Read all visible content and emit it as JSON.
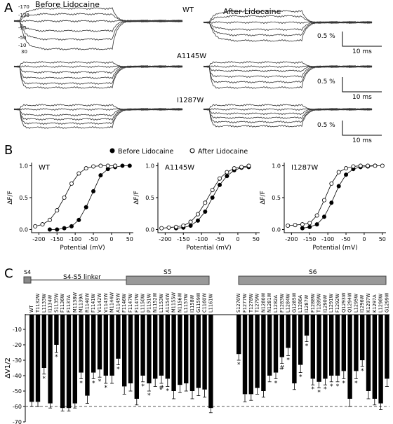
{
  "panel_labels": {
    "a": "A",
    "b": "B",
    "c": "C"
  },
  "panel_a": {
    "col_before": "Before Lidocaine",
    "col_after": "After Lidocaine",
    "rows": [
      {
        "label": "WT",
        "scale_pct": "0.5 %",
        "scale_ms": "10 ms"
      },
      {
        "label": "A1145W",
        "scale_pct": "0.5 %",
        "scale_ms": "10 ms"
      },
      {
        "label": "I1287W",
        "scale_pct": "0.5 %",
        "scale_ms": "10 ms"
      }
    ],
    "voltage_labels": [
      "-170",
      "-130",
      "-90",
      "-50",
      "-10",
      "30"
    ]
  },
  "panel_b": {
    "legend_before": "Before Lidocaine",
    "legend_after": "After Lidocaine",
    "ylabel": "ΔF/F",
    "xlabel": "Potential (mV)",
    "chart_data": [
      {
        "type": "scatter",
        "title": "WT",
        "xlim": [
          -220,
          60
        ],
        "ylim": [
          -0.05,
          1.05
        ],
        "xticks": [
          -200,
          -150,
          -100,
          -50,
          0,
          50
        ],
        "yticks": [
          0.0,
          0.5,
          1.0
        ],
        "series": [
          {
            "name": "Before Lidocaine",
            "x": [
              -170,
              -150,
              -130,
              -110,
              -90,
              -70,
              -50,
              -30,
              -10,
              10,
              30,
              50
            ],
            "y": [
              0.0,
              0.0,
              0.02,
              0.05,
              0.15,
              0.35,
              0.6,
              0.85,
              0.95,
              0.98,
              1.0,
              1.0
            ],
            "fill": "#000"
          },
          {
            "name": "After Lidocaine",
            "x": [
              -210,
              -190,
              -170,
              -150,
              -130,
              -110,
              -90,
              -70,
              -50,
              -30,
              -10,
              10
            ],
            "y": [
              0.05,
              0.08,
              0.15,
              0.3,
              0.5,
              0.72,
              0.88,
              0.96,
              0.99,
              1.0,
              1.0,
              1.0
            ],
            "fill": "#fff"
          }
        ]
      },
      {
        "type": "scatter",
        "title": "A1145W",
        "xlim": [
          -220,
          60
        ],
        "ylim": [
          -0.05,
          1.05
        ],
        "xticks": [
          -200,
          -150,
          -100,
          -50,
          0,
          50
        ],
        "yticks": [
          0.0,
          0.5,
          1.0
        ],
        "series": [
          {
            "name": "Before Lidocaine",
            "x": [
              -170,
              -150,
              -130,
              -110,
              -90,
              -70,
              -50,
              -30,
              -10,
              10,
              30
            ],
            "y": [
              0.02,
              0.03,
              0.06,
              0.14,
              0.28,
              0.5,
              0.7,
              0.84,
              0.93,
              0.97,
              0.98
            ],
            "fill": "#000"
          },
          {
            "name": "After Lidocaine",
            "x": [
              -210,
              -190,
              -170,
              -150,
              -130,
              -110,
              -90,
              -70,
              -50,
              -30,
              -10,
              10,
              30
            ],
            "y": [
              0.02,
              0.03,
              0.04,
              0.06,
              0.12,
              0.24,
              0.42,
              0.62,
              0.8,
              0.9,
              0.96,
              0.98,
              1.0
            ],
            "fill": "#fff"
          }
        ]
      },
      {
        "type": "scatter",
        "title": "I1287W",
        "xlim": [
          -220,
          60
        ],
        "ylim": [
          -0.05,
          1.05
        ],
        "xticks": [
          -200,
          -150,
          -100,
          -50,
          0,
          50
        ],
        "yticks": [
          0.0,
          0.5,
          1.0
        ],
        "series": [
          {
            "name": "Before Lidocaine",
            "x": [
              -170,
              -150,
              -130,
              -110,
              -90,
              -70,
              -50,
              -30,
              -10,
              10,
              30
            ],
            "y": [
              0.02,
              0.04,
              0.08,
              0.2,
              0.42,
              0.68,
              0.86,
              0.95,
              0.98,
              0.99,
              1.0
            ],
            "fill": "#000"
          },
          {
            "name": "After Lidocaine",
            "x": [
              -210,
              -190,
              -170,
              -150,
              -130,
              -110,
              -90,
              -70,
              -50,
              -30,
              -10,
              10,
              30,
              50
            ],
            "y": [
              0.06,
              0.07,
              0.08,
              0.1,
              0.22,
              0.46,
              0.72,
              0.9,
              0.96,
              0.99,
              1.0,
              1.0,
              1.0,
              1.0
            ],
            "fill": "#fff"
          }
        ]
      }
    ]
  },
  "panel_c": {
    "topology": {
      "s4": "S4",
      "linker": "S4-S5 linker",
      "s5": "S5",
      "s6": "S6"
    },
    "ylabel": "ΔV1/2",
    "chart_data": {
      "type": "bar",
      "ylim": [
        -70,
        0
      ],
      "yticks": [
        -70,
        -60,
        -50,
        -40,
        -30,
        -20,
        -10
      ],
      "reference_line": -60,
      "groups": [
        {
          "name": "S4-S5 linker / S5",
          "categories": [
            "WT",
            "T1132W",
            "L1133W",
            "I1134W",
            "S1135W",
            "F1136W",
            "F1137A",
            "M1138W",
            "M1139A",
            "R1140W",
            "F1141W",
            "V1142W",
            "V1143W",
            "M1144W",
            "A1145W",
            "F1146W",
            "F1147W",
            "F1147W",
            "L1150W",
            "P1151W",
            "N1152W",
            "L1153W",
            "A1154W",
            "M1155W",
            "N1156W",
            "L1157W",
            "I1158W",
            "G1159W",
            "C1160W",
            "L1161W"
          ],
          "values": [
            -57,
            -57,
            -35,
            -58,
            -20,
            -61,
            -61,
            -58,
            -38,
            -53,
            -38,
            -36,
            -40,
            -40,
            -29,
            -47,
            -45,
            -55,
            -40,
            -45,
            -42,
            -40,
            -42,
            -50,
            -46,
            -45,
            -50,
            -48,
            -49,
            -61
          ],
          "errors": [
            3,
            3,
            4,
            3,
            5,
            2,
            2,
            3,
            4,
            5,
            4,
            5,
            5,
            5,
            4,
            5,
            5,
            4,
            4,
            5,
            5,
            5,
            5,
            5,
            5,
            5,
            5,
            5,
            5,
            3
          ],
          "markers": [
            "",
            "",
            "*",
            "",
            "*",
            "",
            "",
            "",
            "*",
            "",
            "*",
            "*",
            "*",
            "",
            "*",
            "",
            "",
            "",
            "*",
            "*",
            "",
            "#",
            "*",
            "",
            "",
            "",
            "",
            "",
            "",
            ""
          ]
        },
        {
          "name": "S6",
          "categories": [
            "S1276W",
            "F1277W",
            "T1278W",
            "T1279W",
            "N1280W",
            "N1281W",
            "L1282A",
            "F1283W",
            "L1284W",
            "G1285W",
            "L1286A",
            "I1287W",
            "F1288W",
            "T1289W",
            "I1290W",
            "L1291W",
            "F1292W",
            "Q1293W",
            "Q1294W",
            "L1295W",
            "I1296W",
            "K1297W",
            "K1297A",
            "L1298W",
            "G1299W"
          ],
          "values": [
            -26,
            -52,
            -52,
            -48,
            -50,
            -40,
            -38,
            -28,
            -22,
            -45,
            -33,
            -14,
            -42,
            -44,
            -42,
            -40,
            -40,
            -37,
            -55,
            -37,
            -30,
            -50,
            -55,
            -58,
            -42
          ],
          "errors": [
            4,
            5,
            4,
            4,
            4,
            4,
            4,
            4,
            5,
            4,
            5,
            4,
            4,
            4,
            4,
            4,
            4,
            5,
            5,
            5,
            4,
            5,
            4,
            4,
            5
          ],
          "markers": [
            "*",
            "",
            "",
            "",
            "",
            "",
            "*",
            "#",
            "*",
            "",
            "*",
            "*",
            "*",
            "*",
            "*",
            "*",
            "*",
            "*",
            "",
            "*",
            "*",
            "",
            "",
            "",
            ""
          ]
        }
      ]
    }
  }
}
